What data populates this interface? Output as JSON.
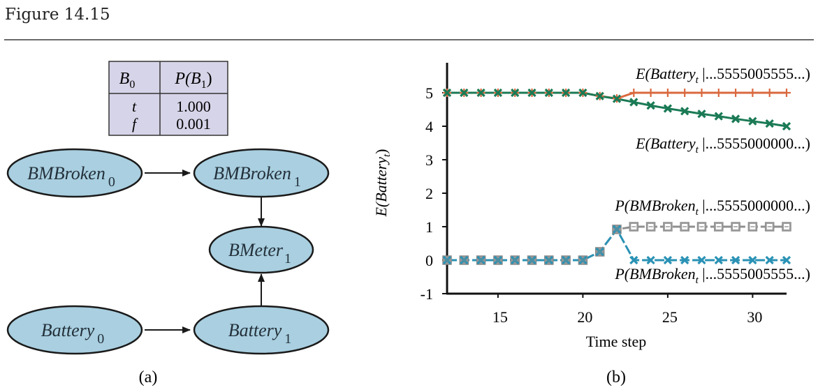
{
  "figure": {
    "title": "Figure 14.15",
    "panel_a_caption": "(a)",
    "panel_b_caption": "(b)"
  },
  "cpt": {
    "header_parent": "B",
    "header_parent_sub": "0",
    "header_prob": "P(B",
    "header_prob_sub": "1",
    "header_prob_close": ")",
    "rows": [
      {
        "value": "t",
        "prob": "1.000"
      },
      {
        "value": "f",
        "prob": "0.001"
      }
    ],
    "fill_color": "#d6d4e8"
  },
  "network": {
    "node_fill": "#a9cfe0",
    "nodes": [
      {
        "id": "bmbroken0",
        "name": "BMBroken",
        "sub": "0"
      },
      {
        "id": "bmbroken1",
        "name": "BMBroken",
        "sub": "1"
      },
      {
        "id": "bmeter1",
        "name": "BMeter",
        "sub": "1"
      },
      {
        "id": "battery0",
        "name": "Battery",
        "sub": "0"
      },
      {
        "id": "battery1",
        "name": "Battery",
        "sub": "1"
      }
    ],
    "edges": [
      {
        "from": "bmbroken0",
        "to": "bmbroken1"
      },
      {
        "from": "bmbroken1",
        "to": "bmeter1"
      },
      {
        "from": "battery0",
        "to": "battery1"
      },
      {
        "from": "battery1",
        "to": "bmeter1"
      }
    ]
  },
  "chart_data": {
    "type": "line",
    "title": "",
    "xlabel": "Time step",
    "ylabel": "E(Battery_t)",
    "ylabel_main": "E(Battery",
    "ylabel_sub": "t",
    "ylabel_close": ")",
    "xlim": [
      12,
      32
    ],
    "ylim": [
      -1,
      5.8
    ],
    "xticks": [
      15,
      20,
      25,
      30
    ],
    "yticks": [
      -1,
      0,
      1,
      2,
      3,
      4,
      5
    ],
    "grid": false,
    "x": [
      12,
      13,
      14,
      15,
      16,
      17,
      18,
      19,
      20,
      21,
      22,
      23,
      24,
      25,
      26,
      27,
      28,
      29,
      30,
      31,
      32
    ],
    "series": [
      {
        "name": "E(Battery_t | ...5555005555...)",
        "label_pre": "E(Battery",
        "label_sub": "t",
        "label_post": " |...5555005555...)",
        "color": "#d9693f",
        "marker": "plus",
        "values": [
          5,
          5,
          5,
          5,
          5,
          5,
          5,
          5,
          5,
          4.9,
          4.83,
          5,
          5,
          5,
          5,
          5,
          5,
          5,
          5,
          5,
          5
        ]
      },
      {
        "name": "E(Battery_t | ...5555000000...)",
        "label_pre": "E(Battery",
        "label_sub": "t",
        "label_post": " |...5555000000...)",
        "color": "#1a7a55",
        "marker": "x",
        "values": [
          5,
          5,
          5,
          5,
          5,
          5,
          5,
          5,
          5,
          4.9,
          4.82,
          4.72,
          4.62,
          4.53,
          4.45,
          4.37,
          4.3,
          4.22,
          4.15,
          4.08,
          4.0
        ]
      },
      {
        "name": "P(BMBroken_t | ...5555000000...)",
        "label_pre": "P(BMBroken",
        "label_sub": "t",
        "label_post": " |...5555000000...)",
        "color": "#8f8f8f",
        "marker": "square",
        "values": [
          0,
          0,
          0,
          0,
          0,
          0,
          0,
          0,
          0,
          0.25,
          0.92,
          1,
          1,
          1,
          1,
          1,
          1,
          1,
          1,
          1,
          1
        ]
      },
      {
        "name": "P(BMBroken_t | ...5555005555...)",
        "label_pre": "P(BMBroken",
        "label_sub": "t",
        "label_post": " |...5555005555...)",
        "color": "#2a92b5",
        "marker": "x",
        "values": [
          0,
          0,
          0,
          0,
          0,
          0,
          0,
          0,
          0,
          0.25,
          0.92,
          0,
          0,
          0,
          0,
          0,
          0,
          0,
          0,
          0,
          0
        ]
      }
    ]
  }
}
